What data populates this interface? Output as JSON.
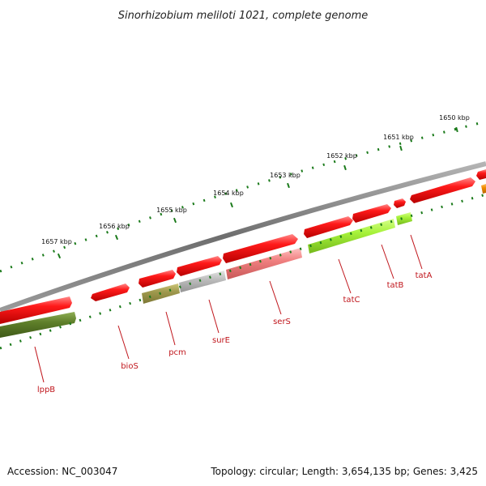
{
  "title": "Sinorhizobium meliloti 1021, complete genome",
  "footer": {
    "accession": "Accession: NC_003047",
    "summary": "Topology: circular; Length: 3,654,135 bp; Genes: 3,425"
  },
  "ruler": {
    "labels": [
      "1650 kbp",
      "1651 kbp",
      "1652 kbp",
      "1653 kbp",
      "1654 kbp",
      "1655 kbp",
      "1656 kbp",
      "1657 kbp"
    ]
  },
  "genes": [
    {
      "name": "lppB"
    },
    {
      "name": "bioS"
    },
    {
      "name": "pcm"
    },
    {
      "name": "surE"
    },
    {
      "name": "serS"
    },
    {
      "name": "tatC"
    },
    {
      "name": "tatB"
    },
    {
      "name": "tatA"
    }
  ],
  "colors": {
    "backbone": "#7a7a7a",
    "ticks": "#1a7a1a",
    "forward_feature": "#e8141c",
    "cds_green": "#5f7f2a",
    "cds_olive": "#a09a4e",
    "cds_grey": "#b8b8b8",
    "cds_pink": "#f08080",
    "cds_lime": "#a6f23a",
    "cds_orange": "#f08a00",
    "label": "#c0161c"
  }
}
